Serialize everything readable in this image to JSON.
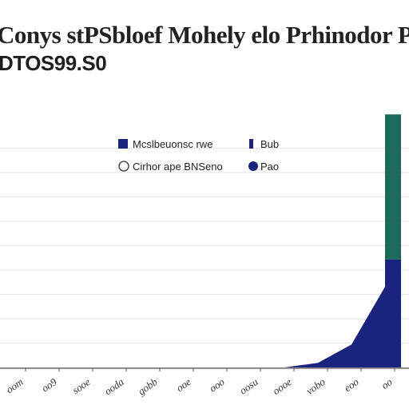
{
  "chart_data": {
    "type": "bar",
    "title": "Conys stPSbloef Mohely elo Prhinodor Py",
    "subtitle": "DTOS99.S0",
    "xlabel": "",
    "ylabel": "",
    "grid": true,
    "legend_position": "top-center",
    "categories": [
      "oom",
      "oo9",
      "sooe",
      "ooda",
      "gobb",
      "ooe",
      "ooo",
      "oosu",
      "oooe",
      "vobo",
      "eoo",
      "oo"
    ],
    "ylim": [
      0,
      100
    ],
    "series": [
      {
        "name": "Mcslbeuonsc rwe",
        "marker": "square",
        "color": "#1a237e",
        "values": [
          0,
          0,
          0,
          0,
          0,
          0,
          0,
          0,
          0,
          2,
          10,
          47
        ]
      },
      {
        "name": "Cirhor ape BNSeno",
        "marker": "circle",
        "color": "#1f6b5a",
        "values": [
          0,
          0,
          0,
          0,
          0,
          0,
          0,
          0,
          0,
          0,
          0,
          63
        ]
      }
    ],
    "side_legend": [
      {
        "label": "Bub",
        "marker": "square"
      },
      {
        "label": "Pao",
        "marker": "circle"
      }
    ]
  }
}
